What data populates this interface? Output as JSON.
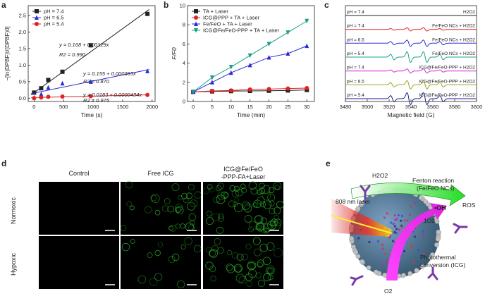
{
  "panels": {
    "a": "a",
    "b": "b",
    "c": "c",
    "d": "d",
    "e": "e"
  },
  "chart_data": [
    {
      "id": "a",
      "type": "scatter",
      "xlabel": "Time (s)",
      "ylabel": "−[ln(DPBF)t/(DPBF)0]",
      "xlim": [
        -100,
        2050
      ],
      "ylim": [
        -0.1,
        2.8
      ],
      "xticks": [
        0,
        500,
        1000,
        1500,
        2000
      ],
      "yticks": [
        0.0,
        0.5,
        1.0,
        1.5,
        2.0,
        2.5
      ],
      "series": [
        {
          "name": "pH = 7.4",
          "color": "#222222",
          "marker": "square",
          "x": [
            0,
            120,
            240,
            480,
            960,
            1920
          ],
          "y": [
            0.17,
            0.3,
            0.55,
            0.8,
            1.6,
            2.55
          ],
          "fit": [
            0.168,
            0.00129
          ],
          "eq": "y = 0.168 + 0.00129x",
          "r2": "R2 = 0.990"
        },
        {
          "name": "pH = 6.5",
          "color": "#2a2ad6",
          "marker": "triangle",
          "x": [
            0,
            120,
            240,
            480,
            960,
            1920
          ],
          "y": [
            0.02,
            0.12,
            0.32,
            0.45,
            0.5,
            0.82
          ],
          "fit": [
            0.155,
            0.000365
          ],
          "eq": "y = 0.155 + 0.000365x",
          "r2": "R2 = 0.870"
        },
        {
          "name": "pH = 5.4",
          "color": "#e02222",
          "marker": "circle",
          "x": [
            0,
            120,
            240,
            480,
            960,
            1920
          ],
          "y": [
            0.0,
            0.02,
            0.04,
            0.05,
            0.06,
            0.1
          ],
          "fit": [
            0.0183,
            4.34e-05
          ],
          "eq": "y = 0.0183 + 0.0000434x",
          "r2": "R2 = 0.975"
        }
      ]
    },
    {
      "id": "b",
      "type": "line",
      "xlabel": "Time (min)",
      "ylabel": "F/F0",
      "xlim": [
        -1.5,
        32
      ],
      "ylim": [
        0,
        10
      ],
      "xticks": [
        0,
        5,
        10,
        15,
        20,
        25,
        30
      ],
      "yticks": [
        0,
        2,
        4,
        6,
        8,
        10
      ],
      "x": [
        0,
        5,
        10,
        15,
        20,
        25,
        30
      ],
      "series": [
        {
          "name": "TA + Laser",
          "color": "#222222",
          "marker": "square",
          "y": [
            1.0,
            1.05,
            1.08,
            1.1,
            1.12,
            1.15,
            1.2
          ]
        },
        {
          "name": "ICG@PPP + TA + Laser",
          "color": "#e02222",
          "marker": "circle",
          "y": [
            1.0,
            1.1,
            1.15,
            1.25,
            1.3,
            1.35,
            1.4
          ]
        },
        {
          "name": "Fe/FeO + TA + Laser",
          "color": "#2a2ad6",
          "marker": "triangle",
          "y": [
            1.0,
            2.0,
            3.0,
            3.8,
            4.6,
            5.0,
            5.8
          ]
        },
        {
          "name": "ICG@Fe/FeO-PPP + TA + Laser",
          "color": "#18a088",
          "marker": "triangle-down",
          "y": [
            1.0,
            2.5,
            3.6,
            4.8,
            6.0,
            7.2,
            8.4
          ]
        }
      ]
    },
    {
      "id": "c",
      "type": "line",
      "xlabel": "Magnetic field (G)",
      "xlim": [
        3480,
        3600
      ],
      "xticks": [
        3480,
        3500,
        3520,
        3540,
        3560,
        3580,
        3600
      ],
      "peaks": [
        3523,
        3538,
        3553,
        3568
      ],
      "amps": [
        0.5,
        1.0,
        1.0,
        0.5
      ],
      "series": [
        {
          "left": "pH = 7.4",
          "right": "H2O2",
          "color": "#222222",
          "amp": 0.0
        },
        {
          "left": "pH = 7.4",
          "right": "Fe/FeO NCs + H2O2",
          "color": "#e02222",
          "amp": 0.45
        },
        {
          "left": "pH = 6.5",
          "right": "Fe/FeO NCs + H2O2",
          "color": "#2a2ad6",
          "amp": 0.9
        },
        {
          "left": "pH = 5.4",
          "right": "Fe/FeO NCs + H2O2",
          "color": "#18a088",
          "amp": 1.5
        },
        {
          "left": "pH = 7.4",
          "right": "ICG@Fe/FeO-PPP + H2O2",
          "color": "#d02ad0",
          "amp": 0.6
        },
        {
          "left": "pH = 6.5",
          "right": "ICG@Fe/FeO-PPP + H2O2",
          "color": "#a0a020",
          "amp": 1.2
        },
        {
          "left": "pH = 5.4",
          "right": "ICG@Fe/FeO-PPP + H2O2",
          "color": "#1a1a90",
          "amp": 1.7
        }
      ]
    }
  ],
  "panel_d": {
    "columns": [
      "Control",
      "Free ICG",
      "ICG@Fe/FeO-PPP-FA+Laser"
    ],
    "rows": [
      "Normoxic",
      "Hypoxic"
    ],
    "intensity": [
      [
        0.0,
        0.35,
        0.75
      ],
      [
        0.0,
        0.15,
        0.45
      ]
    ]
  },
  "panel_e": {
    "h2o2": "H2O2",
    "fenton": "Fenton reaction",
    "fenton_sub": "(Fe/FeO NCs)",
    "laser": "808 nm laser",
    "ros": "ROS",
    "oh": "•OH",
    "o2_top": "1O2",
    "o2_bottom": "O2",
    "photothermal": "Photothermal",
    "conversion": "conversion (ICG)"
  }
}
